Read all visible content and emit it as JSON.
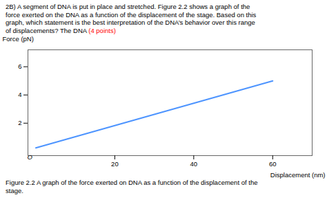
{
  "chart_data": {
    "type": "line",
    "subtitle": "2B) A segment of DNA is put in place and stretched. Figure 2.2 shows a graph of the\nforce exerted on the DNA as a function of the displacement of the stage. Based on this\ngraph, which statement is the best interpretation of the DNA’s behavior over this range\nof displacements? The DNA ",
    "annotations": [
      {
        "text": "(4 points)",
        "color": "#ff0000"
      },
      {
        "text": "O",
        "x": 0,
        "y": 0
      }
    ],
    "caption": "Figure 2.2 A graph of the force exerted on DNA as a function of the displacement of the\nstage.",
    "xlabel": "Displacement (nm)",
    "ylabel": "Force (pN)",
    "x": [
      0,
      60
    ],
    "values": [
      0.25,
      5.0
    ],
    "color": "#4d94ff",
    "xlim": [
      -2,
      70
    ],
    "ylim": [
      -0.3,
      7.2
    ],
    "xticks": [
      20,
      40,
      60
    ],
    "yticks": [
      2,
      4,
      6
    ],
    "grid": false
  }
}
